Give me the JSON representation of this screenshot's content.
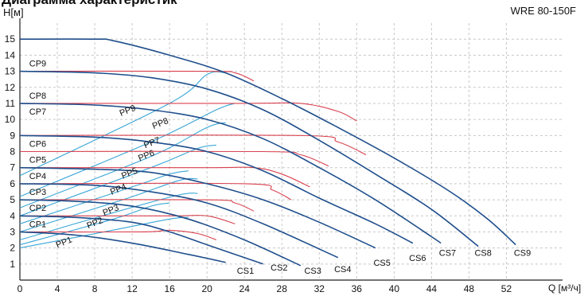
{
  "chart_data": {
    "type": "line",
    "title": "Диаграмма характеристик",
    "model": "WRE 80-150F",
    "ylabel": "H[м]",
    "xlabel": "Q [м³/ч]",
    "xlim": [
      0,
      58
    ],
    "ylim": [
      0,
      16
    ],
    "x_ticks": [
      0,
      4,
      8,
      12,
      16,
      20,
      24,
      28,
      32,
      36,
      40,
      44,
      48,
      52
    ],
    "y_ticks": [
      1,
      2,
      3,
      4,
      5,
      6,
      7,
      8,
      9,
      10,
      11,
      12,
      13,
      14,
      15
    ],
    "grid": true,
    "colors": {
      "cs": "#1f4e8c",
      "cp": "#d9414e",
      "pp": "#3aa6d6",
      "grid": "#c8c8c8"
    },
    "cs_series": [
      {
        "name": "CS1",
        "points": [
          [
            0,
            3
          ],
          [
            6,
            2.8
          ],
          [
            12,
            2.3
          ],
          [
            18,
            1.6
          ],
          [
            22,
            1.1
          ]
        ]
      },
      {
        "name": "CS2",
        "points": [
          [
            0,
            4
          ],
          [
            6,
            3.9
          ],
          [
            12,
            3.6
          ],
          [
            16,
            3
          ],
          [
            20,
            2.2
          ],
          [
            26,
            1
          ]
        ]
      },
      {
        "name": "CS3",
        "points": [
          [
            0,
            5
          ],
          [
            6,
            4.9
          ],
          [
            12,
            4.6
          ],
          [
            18,
            3.8
          ],
          [
            24,
            2.5
          ],
          [
            30,
            0.9
          ]
        ]
      },
      {
        "name": "CS4",
        "points": [
          [
            0,
            6
          ],
          [
            8,
            5.9
          ],
          [
            14,
            5.5
          ],
          [
            20,
            4.8
          ],
          [
            26,
            3.5
          ],
          [
            34,
            1.4
          ]
        ]
      },
      {
        "name": "CS5",
        "points": [
          [
            0,
            7
          ],
          [
            8,
            6.9
          ],
          [
            14,
            6.7
          ],
          [
            20,
            6
          ],
          [
            26,
            5
          ],
          [
            32,
            3.6
          ],
          [
            38,
            2
          ]
        ]
      },
      {
        "name": "CS6",
        "points": [
          [
            0,
            9
          ],
          [
            8,
            8.9
          ],
          [
            14,
            8.6
          ],
          [
            20,
            8
          ],
          [
            26,
            6.8
          ],
          [
            32,
            5.1
          ],
          [
            38,
            3.5
          ],
          [
            42,
            2.3
          ]
        ]
      },
      {
        "name": "CS7",
        "points": [
          [
            0,
            11
          ],
          [
            8,
            10.9
          ],
          [
            14,
            10.6
          ],
          [
            20,
            10
          ],
          [
            26,
            8.8
          ],
          [
            32,
            7
          ],
          [
            38,
            5
          ],
          [
            44,
            2.7
          ],
          [
            45,
            2.3
          ]
        ]
      },
      {
        "name": "CS8",
        "points": [
          [
            0,
            13
          ],
          [
            8,
            12.9
          ],
          [
            14,
            12.6
          ],
          [
            20,
            11.9
          ],
          [
            26,
            10.6
          ],
          [
            32,
            8.7
          ],
          [
            38,
            6.6
          ],
          [
            44,
            4.4
          ],
          [
            49,
            2.1
          ]
        ]
      },
      {
        "name": "CS9",
        "points": [
          [
            0,
            15
          ],
          [
            8,
            15
          ],
          [
            10,
            14.9
          ],
          [
            16,
            14
          ],
          [
            22,
            12.9
          ],
          [
            28,
            11.3
          ],
          [
            34,
            9.5
          ],
          [
            40,
            7.6
          ],
          [
            46,
            5.5
          ],
          [
            50,
            3.8
          ],
          [
            53,
            2.2
          ]
        ]
      }
    ],
    "cp_series": [
      {
        "name": "CP1",
        "points": [
          [
            0,
            3
          ],
          [
            13,
            3
          ],
          [
            16,
            3.1
          ],
          [
            19,
            2.9
          ],
          [
            21,
            2.5
          ]
        ]
      },
      {
        "name": "CP2",
        "points": [
          [
            0,
            4
          ],
          [
            16,
            4
          ],
          [
            20,
            4
          ],
          [
            23,
            3.5
          ]
        ]
      },
      {
        "name": "CP3",
        "points": [
          [
            0,
            5
          ],
          [
            20,
            5
          ],
          [
            23,
            4.8
          ],
          [
            25,
            4.3
          ]
        ]
      },
      {
        "name": "CP4",
        "points": [
          [
            0,
            6
          ],
          [
            24,
            6
          ],
          [
            27,
            5.6
          ],
          [
            29,
            5
          ]
        ]
      },
      {
        "name": "CP5",
        "points": [
          [
            0,
            7
          ],
          [
            20,
            7
          ],
          [
            25,
            7
          ],
          [
            28,
            6.6
          ],
          [
            31,
            5.8
          ]
        ]
      },
      {
        "name": "CP6",
        "points": [
          [
            0,
            8
          ],
          [
            26,
            8
          ],
          [
            30,
            7.8
          ],
          [
            33,
            7.1
          ]
        ]
      },
      {
        "name": "CP7",
        "points": [
          [
            0,
            9
          ],
          [
            30,
            9
          ],
          [
            34,
            8.6
          ],
          [
            37,
            7.8
          ]
        ]
      },
      {
        "name": "CP8",
        "points": [
          [
            0,
            11
          ],
          [
            24,
            11
          ],
          [
            30,
            11
          ],
          [
            34,
            10.5
          ],
          [
            36,
            9.9
          ]
        ]
      },
      {
        "name": "CP9",
        "points": [
          [
            0,
            13
          ],
          [
            20,
            13
          ],
          [
            23,
            12.9
          ],
          [
            25,
            12.4
          ]
        ]
      }
    ],
    "pp_series": [
      {
        "name": "PP1",
        "points": [
          [
            0,
            2
          ],
          [
            9,
            3
          ],
          [
            16,
            3.8
          ],
          [
            18,
            3.9
          ]
        ]
      },
      {
        "name": "PP2",
        "points": [
          [
            0,
            2.2
          ],
          [
            10,
            3.8
          ],
          [
            14,
            4.6
          ],
          [
            16,
            4.8
          ]
        ]
      },
      {
        "name": "PP3",
        "points": [
          [
            0,
            2.5
          ],
          [
            10,
            4.2
          ],
          [
            17,
            5.3
          ],
          [
            19,
            5.4
          ]
        ]
      },
      {
        "name": "PP4",
        "points": [
          [
            0,
            3
          ],
          [
            11,
            5
          ],
          [
            17,
            6.2
          ],
          [
            19,
            6.3
          ]
        ]
      },
      {
        "name": "PP5",
        "points": [
          [
            0,
            3.5
          ],
          [
            12,
            5.8
          ],
          [
            16,
            6.6
          ],
          [
            18,
            6.8
          ]
        ]
      },
      {
        "name": "PP6",
        "points": [
          [
            0,
            4
          ],
          [
            14,
            7
          ],
          [
            19,
            8.2
          ],
          [
            21,
            8.4
          ]
        ]
      },
      {
        "name": "PP7",
        "points": [
          [
            0,
            4.5
          ],
          [
            14,
            7.7
          ],
          [
            20,
            9.5
          ],
          [
            22,
            9.8
          ]
        ]
      },
      {
        "name": "PP8",
        "points": [
          [
            0,
            5.2
          ],
          [
            14,
            8.6
          ],
          [
            21,
            10.6
          ],
          [
            23,
            11
          ]
        ]
      },
      {
        "name": "PP9",
        "points": [
          [
            0,
            6.5
          ],
          [
            16,
            11
          ],
          [
            20,
            12.8
          ],
          [
            22,
            12.9
          ]
        ]
      }
    ],
    "label_positions_note": "",
    "cs_labels": [
      {
        "text": "CS1",
        "x": 23.2,
        "y": 0.4
      },
      {
        "text": "CS2",
        "x": 26.8,
        "y": 0.6
      },
      {
        "text": "CS3",
        "x": 30.4,
        "y": 0.4
      },
      {
        "text": "CS4",
        "x": 33.6,
        "y": 0.5
      },
      {
        "text": "CS5",
        "x": 37.8,
        "y": 0.9
      },
      {
        "text": "CS6",
        "x": 41.6,
        "y": 1.2
      },
      {
        "text": "CS7",
        "x": 44.8,
        "y": 1.5
      },
      {
        "text": "CS8",
        "x": 48.6,
        "y": 1.5
      },
      {
        "text": "CS9",
        "x": 52.8,
        "y": 1.5
      }
    ],
    "cp_labels": [
      {
        "text": "CP1",
        "x": 1,
        "y": 3.3
      },
      {
        "text": "CP2",
        "x": 1,
        "y": 4.3
      },
      {
        "text": "CP3",
        "x": 1,
        "y": 5.3
      },
      {
        "text": "CP4",
        "x": 1,
        "y": 6.3
      },
      {
        "text": "CP5",
        "x": 1,
        "y": 7.3
      },
      {
        "text": "CP6",
        "x": 1,
        "y": 8.3
      },
      {
        "text": "CP7",
        "x": 1,
        "y": 10.3
      },
      {
        "text": "CP8",
        "x": 1,
        "y": 11.3
      },
      {
        "text": "CP9",
        "x": 1,
        "y": 13.3
      }
    ],
    "pp_labels": [
      {
        "text": "PP1",
        "x": 4,
        "y": 2
      },
      {
        "text": "PP2",
        "x": 7.3,
        "y": 3.2
      },
      {
        "text": "PP3",
        "x": 9,
        "y": 4
      },
      {
        "text": "PP4",
        "x": 9.8,
        "y": 5.3
      },
      {
        "text": "PP5",
        "x": 11,
        "y": 6.3
      },
      {
        "text": "PP6",
        "x": 12.8,
        "y": 7.4
      },
      {
        "text": "PP7",
        "x": 13.4,
        "y": 8.2
      },
      {
        "text": "PP8",
        "x": 14.3,
        "y": 9.4
      },
      {
        "text": "PP9",
        "x": 10.8,
        "y": 10.2
      }
    ]
  }
}
